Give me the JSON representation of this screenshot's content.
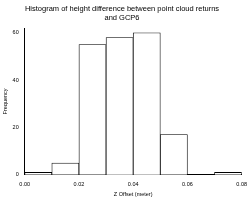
{
  "chart_data": {
    "type": "histogram",
    "title": "Histogram of height difference between point cloud returns\nand GCP6",
    "x_label": "Z Offset (meter)",
    "y_label": "Frequency",
    "bins": [
      0.0,
      0.01,
      0.02,
      0.03,
      0.04,
      0.05,
      0.06,
      0.07,
      0.08
    ],
    "values": [
      1,
      5,
      55,
      58,
      60,
      17,
      0,
      1
    ],
    "color": "#ffffff",
    "xlim": [
      0.0,
      0.08
    ],
    "xticks": [
      {
        "value": 0.0,
        "label": "0.00"
      },
      {
        "value": 0.02,
        "label": "0.02"
      },
      {
        "value": 0.04,
        "label": "0.04"
      },
      {
        "value": 0.06,
        "label": "0.06"
      },
      {
        "value": 0.08,
        "label": "0.08"
      }
    ],
    "ylim": [
      0,
      62
    ],
    "yticks": [
      0,
      20,
      40,
      60
    ],
    "grid": false
  }
}
